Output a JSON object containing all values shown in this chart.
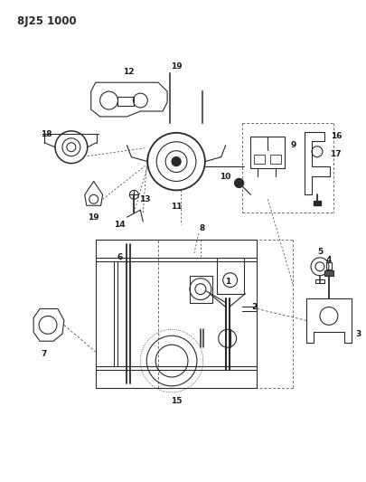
{
  "title": "8J25 1000",
  "bg_color": "#ffffff",
  "line_color": "#2a2a2a",
  "label_color": "#1a1a1a",
  "title_fontsize": 8.5,
  "label_fontsize": 6.5,
  "fig_width": 4.05,
  "fig_height": 5.33,
  "dpi": 100
}
